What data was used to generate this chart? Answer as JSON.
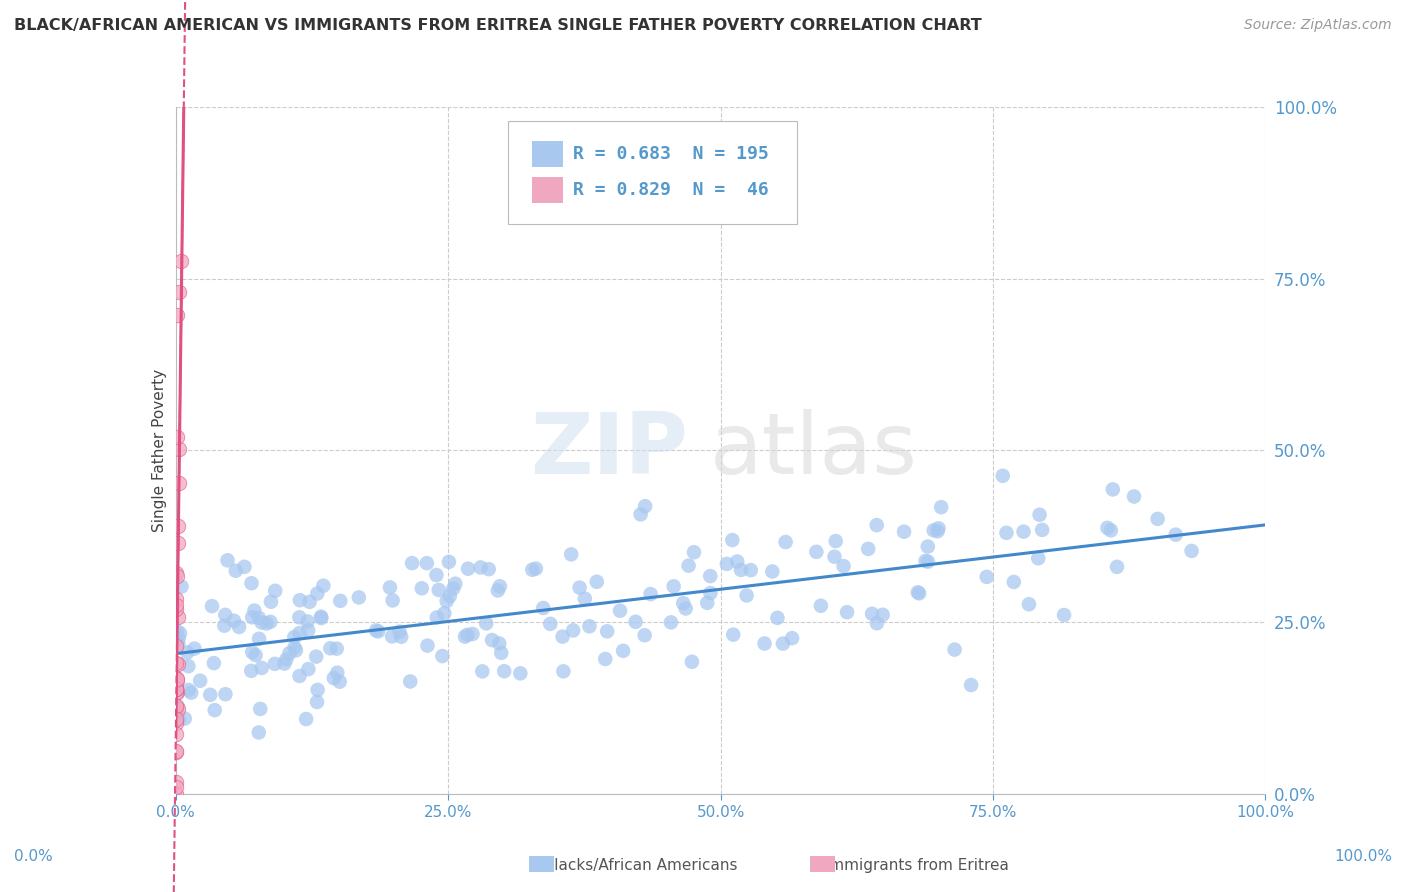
{
  "title": "BLACK/AFRICAN AMERICAN VS IMMIGRANTS FROM ERITREA SINGLE FATHER POVERTY CORRELATION CHART",
  "source": "Source: ZipAtlas.com",
  "ylabel": "Single Father Poverty",
  "legend_blue_r": "0.683",
  "legend_blue_n": "195",
  "legend_pink_r": "0.829",
  "legend_pink_n": "46",
  "legend_blue_label": "Blacks/African Americans",
  "legend_pink_label": "Immigrants from Eritrea",
  "blue_color": "#a8c8f0",
  "pink_color": "#f0a8c0",
  "blue_line_color": "#4488cc",
  "pink_line_color": "#e05080",
  "watermark_zip": "ZIP",
  "watermark_atlas": "atlas",
  "background_color": "#ffffff",
  "grid_color": "#cccccc",
  "title_color": "#333333",
  "source_color": "#999999",
  "tick_color": "#5599cc",
  "label_color": "#333333",
  "seed": 42,
  "n_blue": 195,
  "n_pink": 46,
  "blue_R": 0.683,
  "pink_R": 0.829,
  "xlim": [
    0.0,
    1.0
  ],
  "ylim": [
    0.0,
    1.0
  ]
}
